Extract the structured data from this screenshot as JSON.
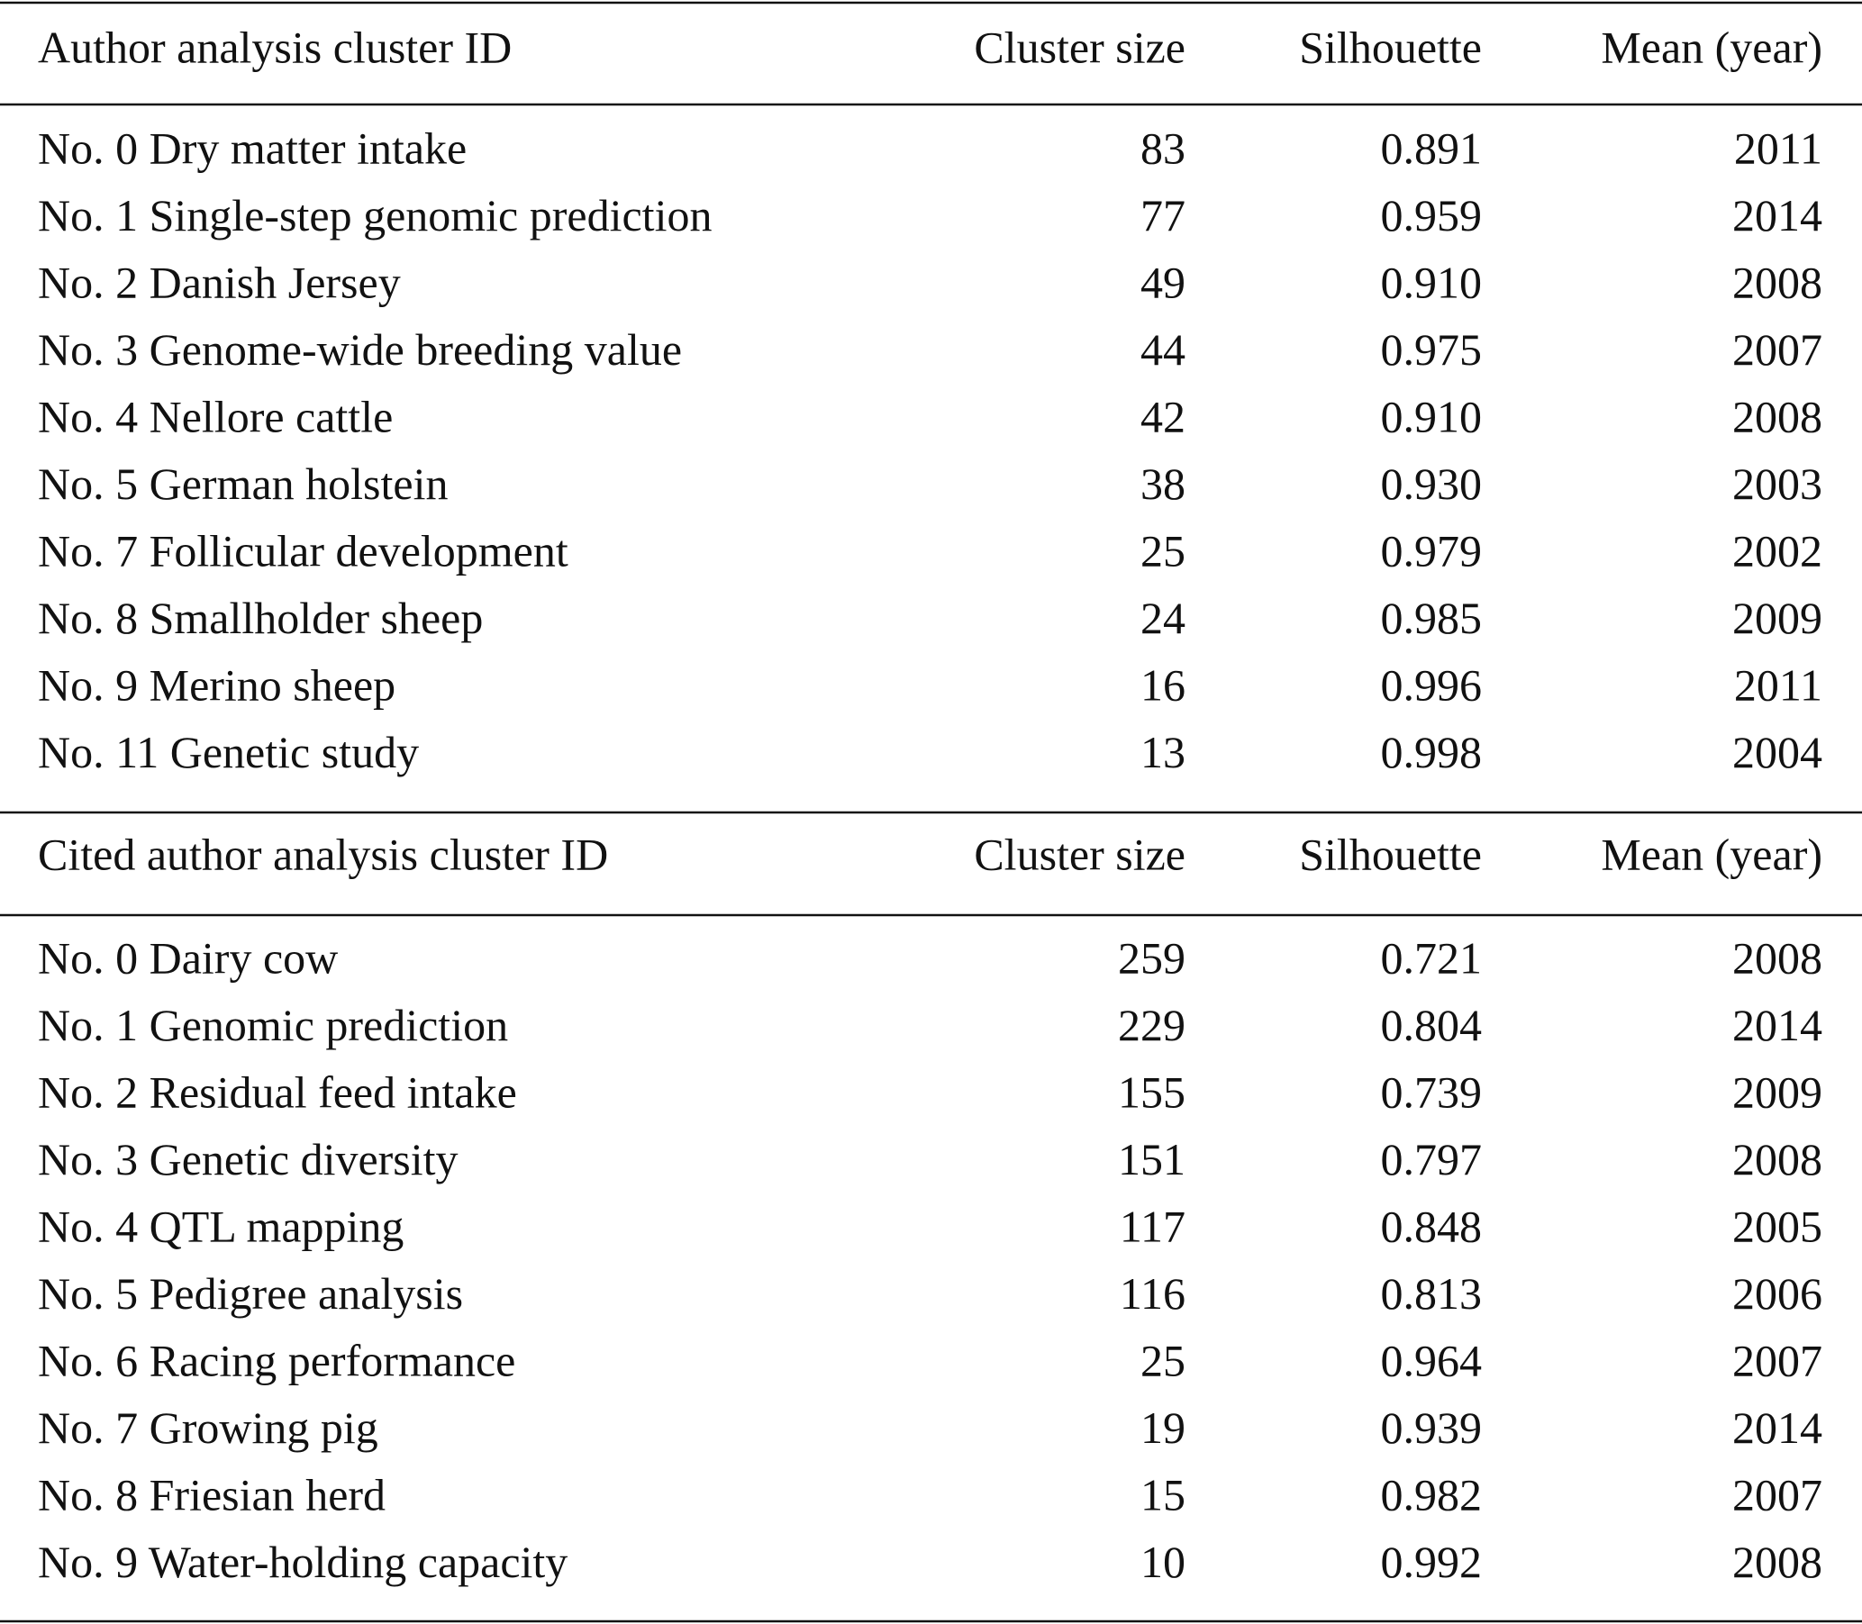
{
  "tables": [
    {
      "header": [
        "Author analysis cluster ID",
        "Cluster size",
        "Silhouette",
        "Mean (year)"
      ],
      "rows": [
        [
          "No. 0 Dry matter intake",
          "83",
          "0.891",
          "2011"
        ],
        [
          "No. 1 Single-step genomic prediction",
          "77",
          "0.959",
          "2014"
        ],
        [
          "No. 2 Danish Jersey",
          "49",
          "0.910",
          "2008"
        ],
        [
          "No. 3 Genome-wide breeding value",
          "44",
          "0.975",
          "2007"
        ],
        [
          "No. 4 Nellore cattle",
          "42",
          "0.910",
          "2008"
        ],
        [
          "No. 5 German holstein",
          "38",
          "0.930",
          "2003"
        ],
        [
          "No. 7 Follicular development",
          "25",
          "0.979",
          "2002"
        ],
        [
          "No. 8 Smallholder sheep",
          "24",
          "0.985",
          "2009"
        ],
        [
          "No. 9 Merino sheep",
          "16",
          "0.996",
          "2011"
        ],
        [
          "No. 11 Genetic study",
          "13",
          "0.998",
          "2004"
        ]
      ]
    },
    {
      "header": [
        "Cited author analysis cluster ID",
        "Cluster size",
        "Silhouette",
        "Mean (year)"
      ],
      "rows": [
        [
          "No. 0 Dairy cow",
          "259",
          "0.721",
          "2008"
        ],
        [
          "No. 1 Genomic prediction",
          "229",
          "0.804",
          "2014"
        ],
        [
          "No. 2 Residual feed intake",
          "155",
          "0.739",
          "2009"
        ],
        [
          "No. 3 Genetic diversity",
          "151",
          "0.797",
          "2008"
        ],
        [
          "No. 4 QTL mapping",
          "117",
          "0.848",
          "2005"
        ],
        [
          "No. 5 Pedigree analysis",
          "116",
          "0.813",
          "2006"
        ],
        [
          "No. 6 Racing performance",
          "25",
          "0.964",
          "2007"
        ],
        [
          "No. 7 Growing pig",
          "19",
          "0.939",
          "2014"
        ],
        [
          "No. 8 Friesian herd",
          "15",
          "0.982",
          "2007"
        ],
        [
          "No. 9 Water-holding capacity",
          "10",
          "0.992",
          "2008"
        ]
      ]
    }
  ]
}
